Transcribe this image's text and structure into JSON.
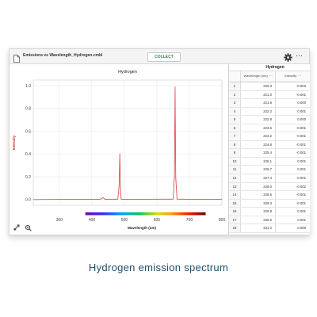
{
  "toolbar": {
    "file_name": "Emissions vs Wavelength_Hydrogen.cmbl",
    "collect_label": "COLLECT",
    "more_icon": "⋯"
  },
  "graph": {
    "tool_icons": [
      "autoscale-icon",
      "zoom-icon"
    ]
  },
  "chart_data": {
    "type": "line",
    "title": "Hydrogen",
    "xlabel": "Wavelength (nm)",
    "ylabel": "Intensity",
    "xlim": [
      220,
      800
    ],
    "ylim": [
      -0.05,
      1.05
    ],
    "xticks": [
      300,
      400,
      500,
      600,
      700,
      800
    ],
    "yticks": [
      0.0,
      0.2,
      0.4,
      0.6,
      0.8,
      1.0
    ],
    "grid": true,
    "series_color": "#d9534f",
    "series": [
      {
        "x": [
          220,
          300,
          400,
          420,
          428,
          434,
          440,
          470,
          480,
          484,
          486,
          488,
          490,
          495,
          500,
          560,
          650,
          654,
          656,
          658,
          662,
          700,
          800
        ],
        "y": [
          0.0,
          0.002,
          0.003,
          0.003,
          0.004,
          0.018,
          0.003,
          0.003,
          0.004,
          0.12,
          0.4,
          0.12,
          0.004,
          0.003,
          0.002,
          0.003,
          0.004,
          0.2,
          0.99,
          0.2,
          0.004,
          0.003,
          0.002
        ]
      }
    ],
    "spectrum_bar": {
      "x_range": [
        380,
        750
      ]
    }
  },
  "table": {
    "dataset_name": "Hydrogen",
    "columns": [
      "Wavelength (nm)",
      "Intensity"
    ],
    "rows": [
      [
        "1",
        "220.3",
        "-0.003"
      ],
      [
        "2",
        "221.0",
        "-0.001"
      ],
      [
        "3",
        "221.6",
        "0.000"
      ],
      [
        "4",
        "222.2",
        "0.001"
      ],
      [
        "5",
        "222.8",
        "0.000"
      ],
      [
        "6",
        "223.5",
        "-0.001"
      ],
      [
        "7",
        "224.2",
        "-0.001"
      ],
      [
        "8",
        "224.8",
        "-0.001"
      ],
      [
        "9",
        "225.4",
        "-0.001"
      ],
      [
        "10",
        "226.1",
        "0.001"
      ],
      [
        "11",
        "226.7",
        "0.001"
      ],
      [
        "12",
        "227.4",
        "-0.001"
      ],
      [
        "13",
        "228.0",
        "-0.002"
      ],
      [
        "14",
        "228.6",
        "-0.001"
      ],
      [
        "15",
        "229.3",
        "-0.001"
      ],
      [
        "16",
        "229.9",
        "0.001"
      ],
      [
        "17",
        "230.5",
        "0.001"
      ],
      [
        "18",
        "231.2",
        "0.000"
      ]
    ]
  },
  "caption": "Hydrogen emission spectrum",
  "colors": {
    "accent": "#2e8b57",
    "caption": "#1f4e6e"
  }
}
